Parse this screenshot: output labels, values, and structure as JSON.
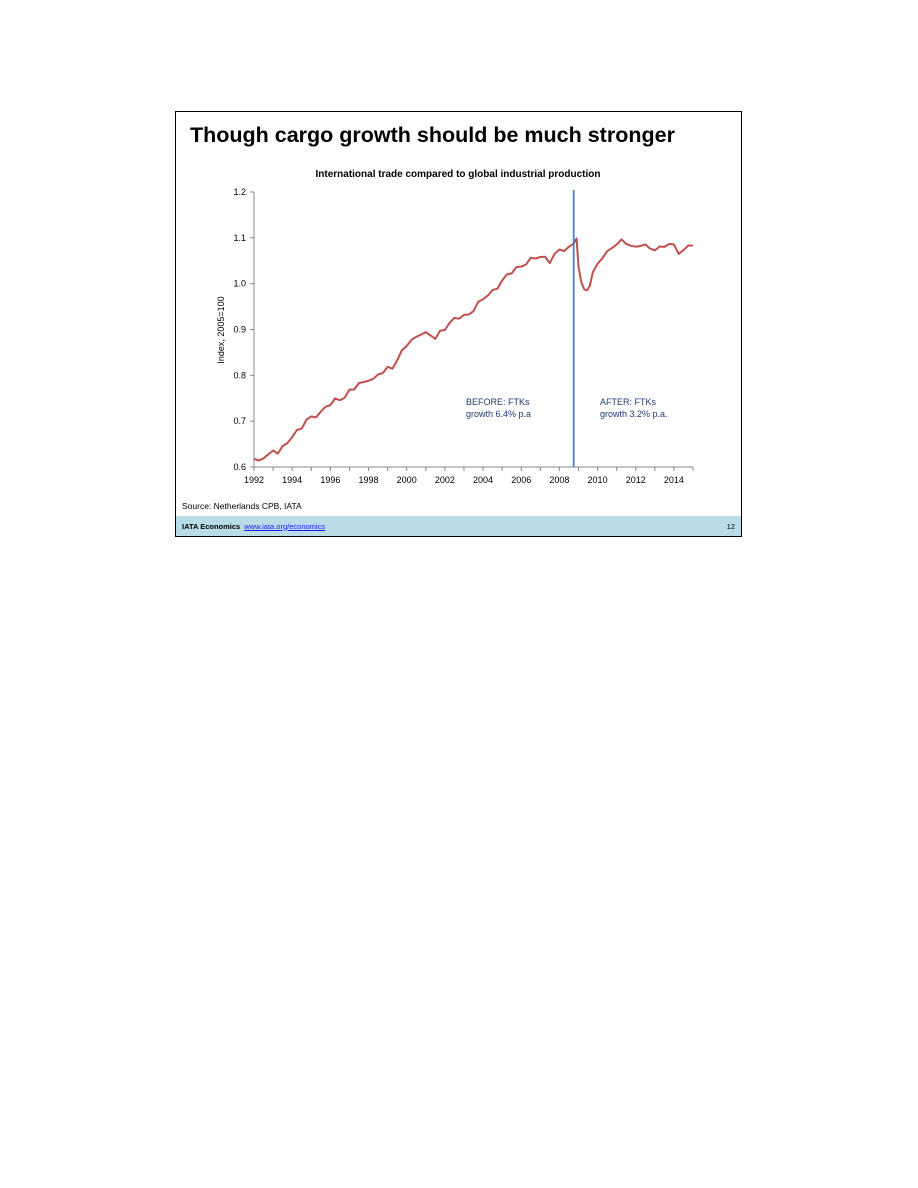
{
  "slide": {
    "title": "Though cargo growth should be much stronger",
    "source": "Source: Netherlands CPB, IATA",
    "footer": {
      "brand": "IATA Economics",
      "link": "www.iata.org/economics",
      "page": "12"
    }
  },
  "colors": {
    "series": "#c0504d",
    "marker": "#4f81bd",
    "annotation": "#1f3b73"
  },
  "chart_data": {
    "type": "line",
    "title": "International trade compared to global industrial production",
    "xlabel": "",
    "ylabel": "Index, 2005=100",
    "xlim": [
      1992,
      2015
    ],
    "ylim": [
      0.6,
      1.2
    ],
    "xticks": [
      "1992",
      "1994",
      "1996",
      "1998",
      "2000",
      "2002",
      "2004",
      "2006",
      "2008",
      "2010",
      "2012",
      "2014"
    ],
    "yticks": [
      "0.6",
      "0.7",
      "0.8",
      "0.9",
      "1.0",
      "1.1",
      "1.2"
    ],
    "grid": false,
    "legend": "none",
    "series": [
      {
        "name": "",
        "x": [
          1992.0,
          1992.25,
          1992.5,
          1992.75,
          1993.0,
          1993.25,
          1993.5,
          1993.75,
          1994.0,
          1994.25,
          1994.5,
          1994.75,
          1995.0,
          1995.25,
          1995.5,
          1995.75,
          1996.0,
          1996.25,
          1996.5,
          1996.75,
          1997.0,
          1997.25,
          1997.5,
          1997.75,
          1998.0,
          1998.25,
          1998.5,
          1998.75,
          1999.0,
          1999.25,
          1999.5,
          1999.75,
          2000.0,
          2000.25,
          2000.5,
          2000.75,
          2001.0,
          2001.25,
          2001.5,
          2001.75,
          2002.0,
          2002.25,
          2002.5,
          2002.75,
          2003.0,
          2003.25,
          2003.5,
          2003.75,
          2004.0,
          2004.25,
          2004.5,
          2004.75,
          2005.0,
          2005.25,
          2005.5,
          2005.75,
          2006.0,
          2006.25,
          2006.5,
          2006.75,
          2007.0,
          2007.25,
          2007.5,
          2007.75,
          2008.0,
          2008.25,
          2008.5,
          2008.75,
          2008.9,
          2009.0,
          2009.15,
          2009.3,
          2009.45,
          2009.6,
          2009.75,
          2010.0,
          2010.25,
          2010.5,
          2010.75,
          2011.0,
          2011.25,
          2011.5,
          2011.75,
          2012.0,
          2012.25,
          2012.5,
          2012.75,
          2013.0,
          2013.25,
          2013.5,
          2013.75,
          2014.0,
          2014.25,
          2014.5,
          2014.75,
          2015.0
        ],
        "values": [
          0.615,
          0.61,
          0.625,
          0.628,
          0.635,
          0.63,
          0.64,
          0.655,
          0.67,
          0.678,
          0.685,
          0.7,
          0.708,
          0.715,
          0.72,
          0.73,
          0.735,
          0.745,
          0.75,
          0.755,
          0.765,
          0.77,
          0.78,
          0.785,
          0.795,
          0.79,
          0.8,
          0.805,
          0.815,
          0.82,
          0.835,
          0.85,
          0.865,
          0.875,
          0.885,
          0.895,
          0.89,
          0.885,
          0.88,
          0.895,
          0.905,
          0.915,
          0.92,
          0.925,
          0.93,
          0.935,
          0.945,
          0.955,
          0.965,
          0.975,
          0.985,
          0.995,
          1.005,
          1.015,
          1.025,
          1.035,
          1.04,
          1.045,
          1.05,
          1.055,
          1.06,
          1.058,
          1.05,
          1.062,
          1.07,
          1.075,
          1.08,
          1.09,
          1.1,
          1.03,
          1.005,
          0.99,
          0.985,
          1.0,
          1.02,
          1.04,
          1.06,
          1.07,
          1.08,
          1.085,
          1.09,
          1.09,
          1.085,
          1.08,
          1.085,
          1.08,
          1.075,
          1.078,
          1.08,
          1.082,
          1.085,
          1.08,
          1.07,
          1.075,
          1.082,
          1.085
        ]
      }
    ],
    "annotations": [
      {
        "lines": [
          "BEFORE: FTKs",
          "growth 6.4% p.a"
        ]
      },
      {
        "lines": [
          "AFTER: FTKs",
          "growth 3.2% p.a."
        ]
      }
    ],
    "marker_x": 2008.75
  }
}
